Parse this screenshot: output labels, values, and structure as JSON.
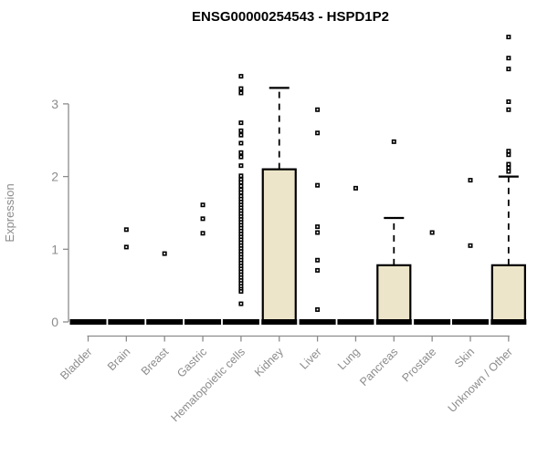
{
  "chart_data": {
    "type": "boxplot",
    "title": "ENSG00000254543 - HSPD1P2",
    "ylabel": "Expression",
    "xlabel": "",
    "yticks": [
      0,
      1,
      2,
      3
    ],
    "ylim": [
      0,
      4.0
    ],
    "grid": false,
    "legend": "none",
    "outlier_marker": "open-square",
    "colors": {
      "box_fill": "#ECE5C9",
      "box_border": "#000000",
      "axis": "#8C8C8C",
      "tick_label": "#8C8C8C",
      "title": "#000000",
      "background": "#FFFFFF"
    },
    "categories": [
      "Bladder",
      "Brain",
      "Breast",
      "Gastric",
      "Hematopoietic cells",
      "Kidney",
      "Liver",
      "Lung",
      "Pancreas",
      "Prostate",
      "Skin",
      "Unknown / Other"
    ],
    "series": [
      {
        "category": "Bladder",
        "q1": 0,
        "median": 0,
        "q3": 0,
        "whisker_low": 0,
        "whisker_high": 0,
        "outliers": []
      },
      {
        "category": "Brain",
        "q1": 0,
        "median": 0,
        "q3": 0,
        "whisker_low": 0,
        "whisker_high": 0,
        "outliers": [
          1.27,
          1.03
        ]
      },
      {
        "category": "Breast",
        "q1": 0,
        "median": 0,
        "q3": 0,
        "whisker_low": 0,
        "whisker_high": 0,
        "outliers": [
          0.94
        ]
      },
      {
        "category": "Gastric",
        "q1": 0,
        "median": 0,
        "q3": 0,
        "whisker_low": 0,
        "whisker_high": 0,
        "outliers": [
          1.61,
          1.42,
          1.22
        ]
      },
      {
        "category": "Hematopoietic cells",
        "q1": 0,
        "median": 0,
        "q3": 0,
        "whisker_low": 0,
        "whisker_high": 0,
        "outliers": [
          3.38,
          3.21,
          3.15,
          2.74,
          2.63,
          2.57,
          2.46,
          2.33,
          2.27,
          2.15,
          2.01,
          1.96,
          1.92,
          1.87,
          1.82,
          1.78,
          1.73,
          1.69,
          1.65,
          1.61,
          1.57,
          1.53,
          1.49,
          1.45,
          1.41,
          1.37,
          1.33,
          1.29,
          1.25,
          1.21,
          1.17,
          1.13,
          1.09,
          1.05,
          1.01,
          0.97,
          0.93,
          0.89,
          0.85,
          0.81,
          0.77,
          0.73,
          0.69,
          0.65,
          0.61,
          0.57,
          0.53,
          0.49,
          0.45,
          0.42,
          0.25
        ]
      },
      {
        "category": "Kidney",
        "q1": 0,
        "median": 0,
        "q3": 2.1,
        "whisker_low": 0,
        "whisker_high": 3.22,
        "outliers": []
      },
      {
        "category": "Liver",
        "q1": 0,
        "median": 0,
        "q3": 0,
        "whisker_low": 0,
        "whisker_high": 0,
        "outliers": [
          2.92,
          2.6,
          1.88,
          1.31,
          1.23,
          0.85,
          0.71,
          0.17
        ]
      },
      {
        "category": "Lung",
        "q1": 0,
        "median": 0,
        "q3": 0,
        "whisker_low": 0,
        "whisker_high": 0,
        "outliers": [
          1.84
        ]
      },
      {
        "category": "Pancreas",
        "q1": 0,
        "median": 0,
        "q3": 0.78,
        "whisker_low": 0,
        "whisker_high": 1.43,
        "outliers": [
          2.48
        ]
      },
      {
        "category": "Prostate",
        "q1": 0,
        "median": 0,
        "q3": 0,
        "whisker_low": 0,
        "whisker_high": 0,
        "outliers": [
          1.23
        ]
      },
      {
        "category": "Skin",
        "q1": 0,
        "median": 0,
        "q3": 0,
        "whisker_low": 0,
        "whisker_high": 0,
        "outliers": [
          1.95,
          1.05
        ]
      },
      {
        "category": "Unknown / Other",
        "q1": 0,
        "median": 0,
        "q3": 0.78,
        "whisker_low": 0,
        "whisker_high": 2.0,
        "outliers": [
          3.92,
          3.63,
          3.48,
          3.03,
          2.92,
          2.35,
          2.3,
          2.17,
          2.12,
          2.07
        ]
      }
    ]
  }
}
